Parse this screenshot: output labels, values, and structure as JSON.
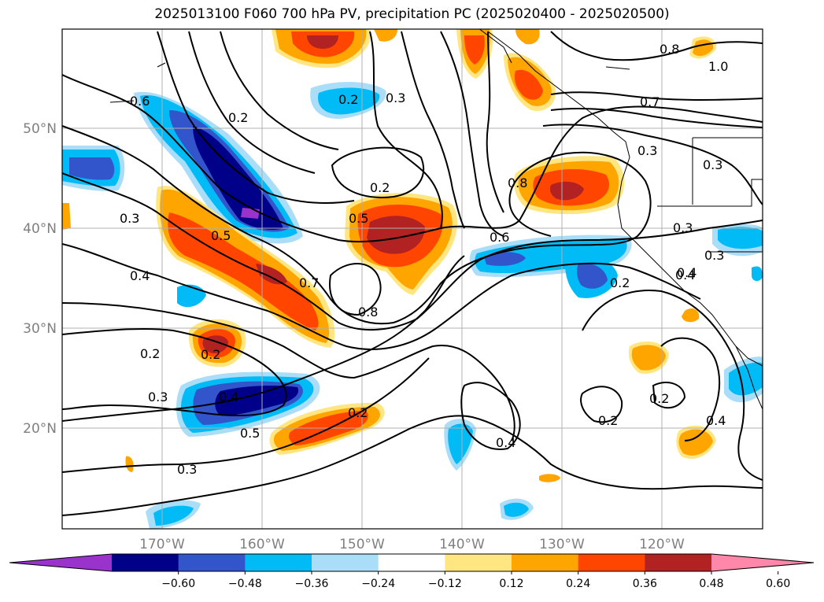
{
  "title": "2025013100 F060 700 hPa PV, precipitation PC (2025020400 - 2025020500)",
  "lat_labels": [
    "50°N",
    "40°N",
    "30°N",
    "20°N"
  ],
  "lon_labels": [
    "170°W",
    "160°W",
    "150°W",
    "140°W",
    "130°W",
    "120°W"
  ],
  "contour_labels": [
    "0.6",
    "0.2",
    "0.2",
    "0.3",
    "0.8",
    "0.7",
    "0.3",
    "0.3",
    "0.2",
    "0.8",
    "0.3",
    "0.5",
    "0.5",
    "0.6",
    "0.3",
    "0.4",
    "0.7",
    "0.8",
    "0.3",
    "0.4",
    "0.2",
    "0.2",
    "0.2",
    "0.4",
    "0.2",
    "0.3",
    "0.5",
    "0.2",
    "0.4",
    "0.2",
    "0.3",
    "0.4",
    "0.4",
    "1.0"
  ],
  "colorbar": {
    "ticks": [
      "−0.60",
      "−0.48",
      "−0.36",
      "−0.24",
      "−0.12",
      "0.12",
      "0.24",
      "0.36",
      "0.48",
      "0.60"
    ],
    "colors": [
      "#9933cc",
      "#000088",
      "#3355cc",
      "#00bbf5",
      "#aaddf7",
      "#ffffff",
      "#ffe680",
      "#ffa500",
      "#ff4500",
      "#b22222",
      "#ff88aa"
    ]
  },
  "colors": {
    "pos1": "#ffe680",
    "pos2": "#ffa500",
    "pos3": "#ff4500",
    "pos4": "#b22222",
    "neg1": "#aaddf7",
    "neg2": "#00bbf5",
    "neg3": "#3355cc",
    "neg4": "#000088",
    "neg5": "#9933cc"
  }
}
